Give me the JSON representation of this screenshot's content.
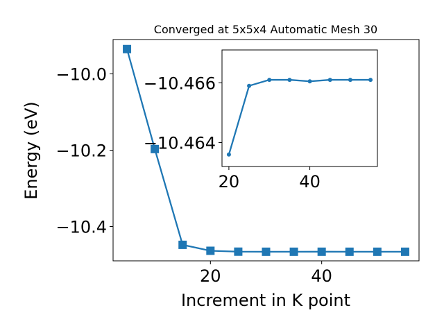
{
  "chart_data": [
    {
      "type": "line",
      "title": "Converged at 5x5x4 Automatic Mesh 30",
      "xlabel": "Increment in K point",
      "ylabel": "Energy (eV)",
      "x": [
        5,
        10,
        15,
        20,
        25,
        30,
        35,
        40,
        45,
        50,
        55
      ],
      "series": [
        {
          "values": [
            -9.935,
            -10.197,
            -10.448,
            -10.4636,
            -10.4659,
            -10.4661,
            -10.4661,
            -10.46605,
            -10.4661,
            -10.4661,
            -10.4661
          ]
        }
      ],
      "xlim": [
        2.5,
        57.5
      ],
      "ylim": [
        -10.49,
        -9.91
      ],
      "xticks": [
        20,
        40
      ],
      "xtick_labels": [
        "20",
        "40"
      ],
      "yticks": [
        -10.0,
        -10.2,
        -10.4
      ],
      "ytick_labels": [
        "−10.0",
        "−10.2",
        "−10.4"
      ],
      "marker": "square",
      "color": "#1f77b4",
      "grid": false
    },
    {
      "type": "line",
      "title": "",
      "xlabel": "",
      "ylabel": "",
      "x": [
        20,
        25,
        30,
        35,
        40,
        45,
        50,
        55
      ],
      "series": [
        {
          "values": [
            -10.4636,
            -10.4659,
            -10.4661,
            -10.4661,
            -10.46605,
            -10.4661,
            -10.4661,
            -10.4661
          ]
        }
      ],
      "xlim": [
        18.3,
        56.7
      ],
      "ylim": [
        -10.4632,
        -10.4671
      ],
      "xticks": [
        20,
        40
      ],
      "xtick_labels": [
        "20",
        "40"
      ],
      "yticks": [
        -10.466,
        -10.464
      ],
      "ytick_labels": [
        "−10.466",
        "−10.464"
      ],
      "marker": "circle",
      "color": "#1f77b4",
      "grid": false
    }
  ]
}
